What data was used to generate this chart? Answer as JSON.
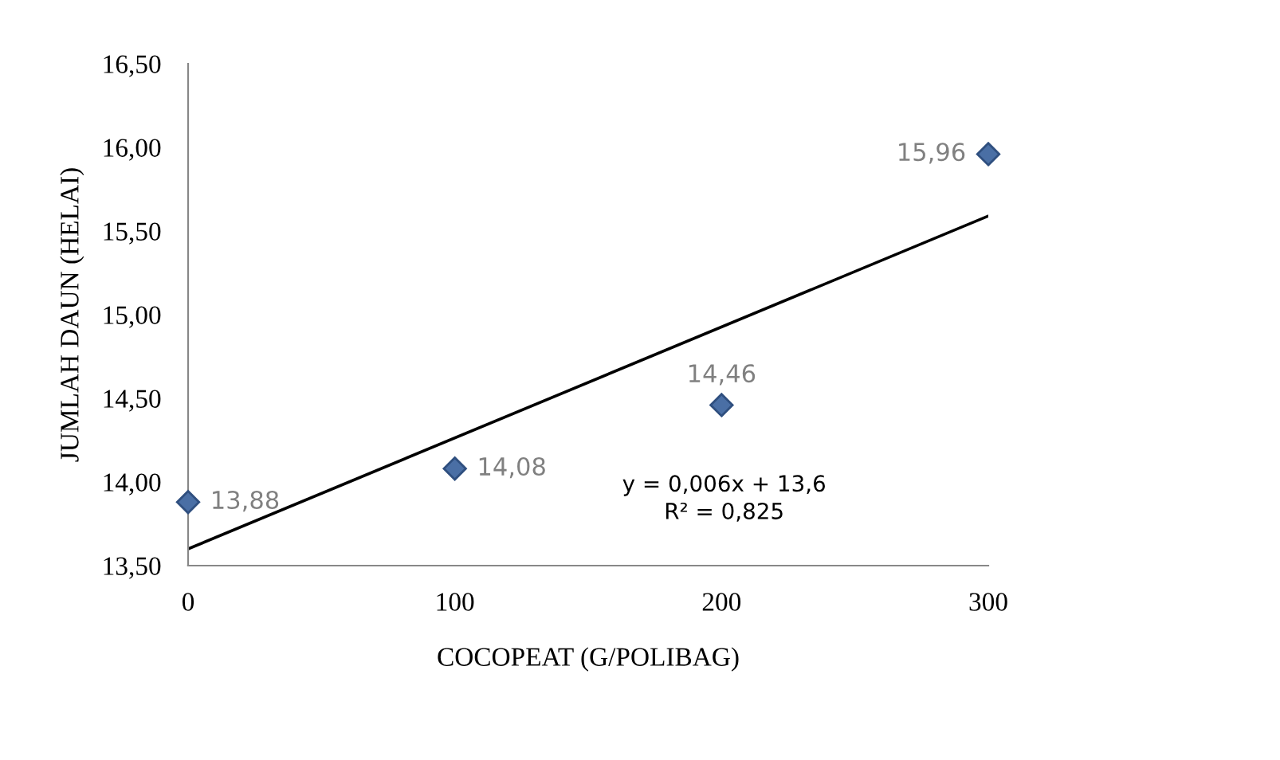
{
  "chart_data": {
    "type": "scatter",
    "xlabel": "COCOPEAT (G/POLIBAG)",
    "ylabel": "JUMLAH DAUN (HELAI)",
    "x": [
      0,
      100,
      200,
      300
    ],
    "series": [
      {
        "color": "#4a6fa5",
        "values": [
          13.88,
          14.08,
          14.46,
          15.96
        ],
        "value_labels": [
          "13,88",
          "14,08",
          "14,46",
          "15,96"
        ],
        "marker": "diamond"
      },
      {
        "type": "line",
        "color": "#000000",
        "x": [
          0,
          300
        ],
        "values": [
          13.6,
          15.59
        ],
        "line_style": "solid",
        "marker": "none"
      }
    ],
    "xlim": [
      0,
      300
    ],
    "ylim": [
      13.5,
      16.5
    ],
    "xticks": [
      0,
      100,
      200,
      300
    ],
    "yticks": [
      {
        "value": 13.5,
        "label": "13,50"
      },
      {
        "value": 14.0,
        "label": "14,00"
      },
      {
        "value": 14.5,
        "label": "14,50"
      },
      {
        "value": 15.0,
        "label": "15,00"
      },
      {
        "value": 15.5,
        "label": "15,50"
      },
      {
        "value": 16.0,
        "label": "16,00"
      },
      {
        "value": 16.5,
        "label": "16,50"
      }
    ],
    "annotations": [
      "y = 0,006x + 13,6",
      "R² = 0,825"
    ],
    "grid": false,
    "legend": false
  }
}
